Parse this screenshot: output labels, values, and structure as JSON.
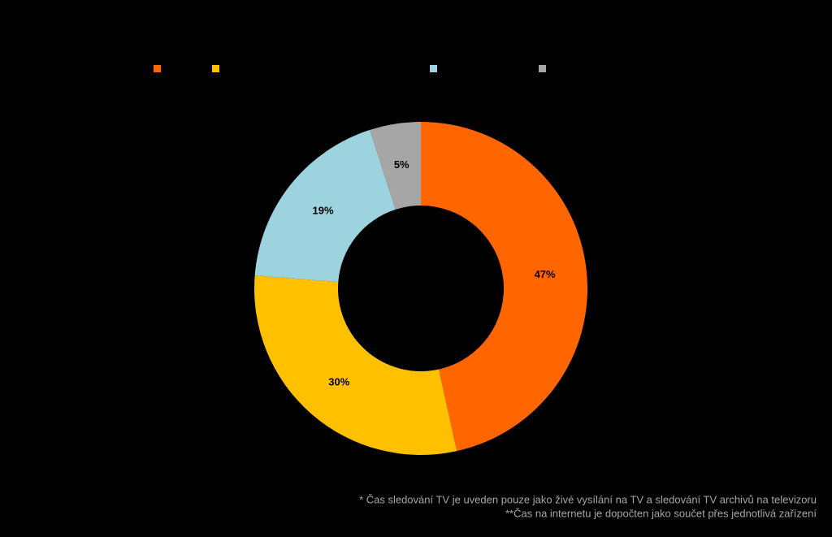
{
  "chart_data": {
    "type": "donut",
    "categories": [
      null,
      null,
      null,
      null
    ],
    "values": [
      47,
      30,
      19,
      5
    ],
    "value_labels": [
      "47%",
      "30%",
      "19%",
      "5%"
    ],
    "colors": [
      "#ff6600",
      "#ffc000",
      "#9dd3df",
      "#a6a6a6"
    ],
    "footnotes": [
      "* Čas sledování TV je uveden pouze jako živé vysílání na TV a sledování TV archivů na televizoru",
      "**Čas na internetu je dopočten jako součet přes jednotlivá zařízení"
    ]
  }
}
